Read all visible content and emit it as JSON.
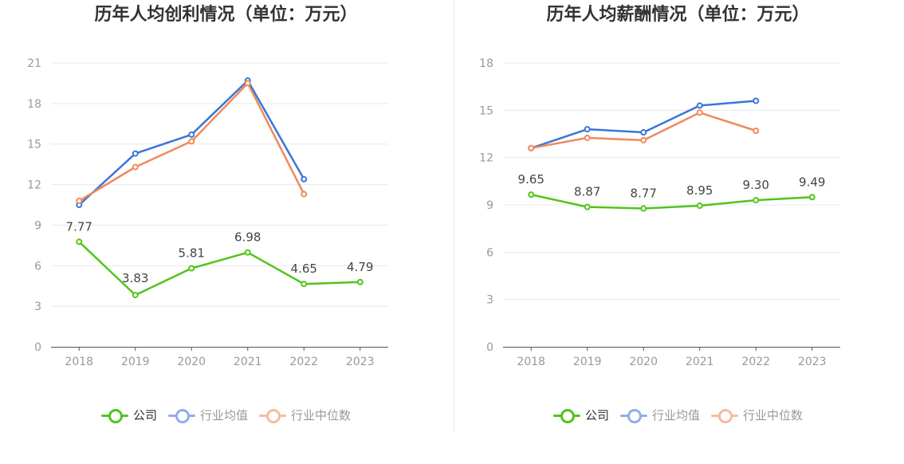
{
  "colors": {
    "company": "#52c41a",
    "industry_avg": "#3a75d9",
    "industry_median": "#f0895c",
    "legend_avg": "#91acec",
    "legend_median": "#f8b9a0",
    "grid": "#e8e8e8",
    "axis": "#555555"
  },
  "legend": {
    "company": "公司",
    "industry_avg": "行业均值",
    "industry_median": "行业中位数"
  },
  "chart_data": [
    {
      "type": "line",
      "title": "历年人均创利情况（单位：万元）",
      "categories": [
        "2018",
        "2019",
        "2020",
        "2021",
        "2022",
        "2023"
      ],
      "yticks": [
        "0",
        "3",
        "6",
        "9",
        "12",
        "15",
        "18",
        "21"
      ],
      "ylim": [
        0,
        21
      ],
      "grid": true,
      "legend_position": "bottom",
      "series": [
        {
          "name": "公司",
          "key": "company",
          "values": [
            7.77,
            3.83,
            5.81,
            6.98,
            4.65,
            4.79
          ],
          "labels": [
            "7.77",
            "3.83",
            "5.81",
            "6.98",
            "4.65",
            "4.79"
          ],
          "label_positions": [
            "above",
            "below",
            "above",
            "above",
            "above",
            "above"
          ]
        },
        {
          "name": "行业均值",
          "key": "industry_avg",
          "values": [
            10.5,
            14.3,
            15.7,
            19.7,
            12.4,
            null
          ]
        },
        {
          "name": "行业中位数",
          "key": "industry_median",
          "values": [
            10.8,
            13.3,
            15.2,
            19.5,
            11.3,
            null
          ]
        }
      ]
    },
    {
      "type": "line",
      "title": "历年人均薪酬情况（单位：万元）",
      "categories": [
        "2018",
        "2019",
        "2020",
        "2021",
        "2022",
        "2023"
      ],
      "yticks": [
        "0",
        "3",
        "6",
        "9",
        "12",
        "15",
        "18"
      ],
      "ylim": [
        0,
        18
      ],
      "grid": true,
      "legend_position": "bottom",
      "series": [
        {
          "name": "公司",
          "key": "company",
          "values": [
            9.65,
            8.87,
            8.77,
            8.95,
            9.3,
            9.49
          ],
          "labels": [
            "9.65",
            "8.87",
            "8.77",
            "8.95",
            "9.30",
            "9.49"
          ],
          "label_positions": [
            "above",
            "above",
            "above",
            "above",
            "above",
            "above"
          ]
        },
        {
          "name": "行业均值",
          "key": "industry_avg",
          "values": [
            12.6,
            13.8,
            13.6,
            15.3,
            15.6,
            null
          ]
        },
        {
          "name": "行业中位数",
          "key": "industry_median",
          "values": [
            12.6,
            13.25,
            13.1,
            14.85,
            13.7,
            null
          ]
        }
      ]
    }
  ]
}
